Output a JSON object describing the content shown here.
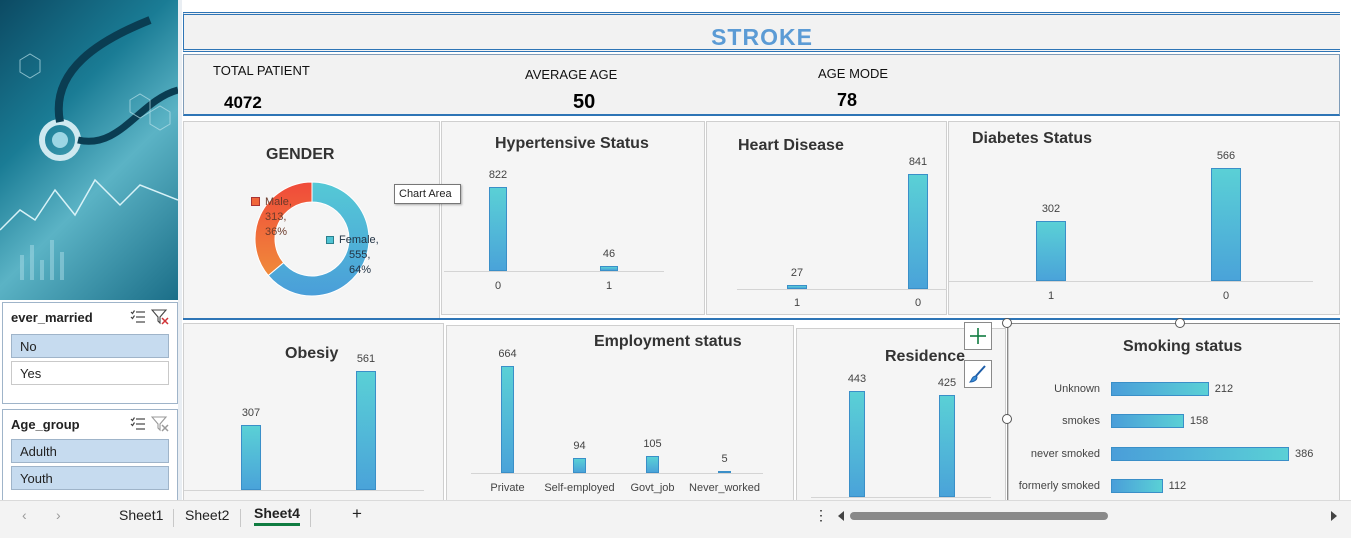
{
  "dashboard": {
    "title": "STROKE",
    "kpis": [
      {
        "label": "TOTAL PATIENT",
        "value": "4072"
      },
      {
        "label": "AVERAGE AGE",
        "value": "50"
      },
      {
        "label": "AGE MODE",
        "value": "78"
      }
    ]
  },
  "slicers": {
    "ever_married": {
      "title": "ever_married",
      "items": [
        "No",
        "Yes"
      ]
    },
    "age_group": {
      "title": "Age_group",
      "items": [
        "Adulth",
        "Youth"
      ]
    }
  },
  "tooltip": "Chart Area",
  "charts": {
    "gender": {
      "title": "GENDER",
      "male_line1": "Male,",
      "male_line2": "313,",
      "male_line3": "36%",
      "female_line1": "Female,",
      "female_line2": "555,",
      "female_line3": "64%"
    },
    "hypertensive": {
      "title": "Hypertensive Status"
    },
    "heart": {
      "title": "Heart Disease"
    },
    "diabetes": {
      "title": "Diabetes Status"
    },
    "obesity": {
      "title": "Obesiy"
    },
    "employment": {
      "title": "Employment status"
    },
    "residence": {
      "title": "Residence"
    },
    "smoking": {
      "title": "Smoking status"
    }
  },
  "chart_data": [
    {
      "type": "pie",
      "title": "GENDER",
      "categories": [
        "Male",
        "Female"
      ],
      "values": [
        313,
        555
      ],
      "percent": [
        36,
        64
      ],
      "colors": [
        "#f0663a",
        "#4fc3d3"
      ]
    },
    {
      "type": "bar",
      "title": "Hypertensive Status",
      "categories": [
        "0",
        "1"
      ],
      "values": [
        822,
        46
      ]
    },
    {
      "type": "bar",
      "title": "Heart Disease",
      "categories": [
        "1",
        "0"
      ],
      "values": [
        27,
        841
      ]
    },
    {
      "type": "bar",
      "title": "Diabetes Status",
      "categories": [
        "1",
        "0"
      ],
      "values": [
        302,
        566
      ]
    },
    {
      "type": "bar",
      "title": "Obesiy",
      "categories": [
        "",
        ""
      ],
      "values": [
        307,
        561
      ]
    },
    {
      "type": "bar",
      "title": "Employment status",
      "categories": [
        "Private",
        "Self-employed",
        "Govt_job",
        "Never_worked"
      ],
      "values": [
        664,
        94,
        105,
        5
      ]
    },
    {
      "type": "bar",
      "title": "Residence",
      "categories": [
        "",
        ""
      ],
      "values": [
        443,
        425
      ]
    },
    {
      "type": "bar",
      "orientation": "horizontal",
      "title": "Smoking status",
      "categories": [
        "Unknown",
        "smokes",
        "never smoked",
        "formerly smoked"
      ],
      "values": [
        212,
        158,
        386,
        112
      ]
    }
  ],
  "tabs": {
    "items": [
      "Sheet1",
      "Sheet2",
      "Sheet4"
    ],
    "active": "Sheet4",
    "add": "+",
    "prev": "‹",
    "next": "›",
    "more": "⋮"
  }
}
